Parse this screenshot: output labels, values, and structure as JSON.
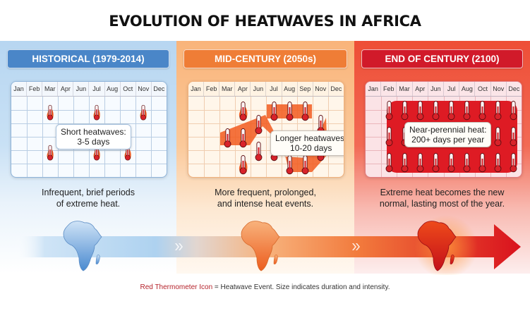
{
  "title": "EVOLUTION OF HEATWAVES IN AFRICA",
  "panels": [
    {
      "id": "historical",
      "label": "HISTORICAL (1979-2014)",
      "accent": "#4a86c8",
      "months": [
        "Jan",
        "Feb",
        "Mar",
        "Apr",
        "Jun",
        "Jul",
        "Aug",
        "Oct",
        "Nov",
        "Dec"
      ],
      "callout_line1": "Short heatwaves:",
      "callout_line2": "3-5 days",
      "description_line1": "Infrequent, brief periods",
      "description_line2": "of extreme heat.",
      "heatwave_events": [
        {
          "month": "Mar",
          "row": 1
        },
        {
          "month": "Jul",
          "row": 1
        },
        {
          "month": "Nov",
          "row": 1
        },
        {
          "month": "Mar",
          "row": 4
        },
        {
          "month": "Jul",
          "row": 4
        },
        {
          "month": "Oct",
          "row": 4
        }
      ]
    },
    {
      "id": "mid-century",
      "label": "MID-CENTURY (2050s)",
      "accent": "#ef7d36",
      "months": [
        "Jan",
        "Feb",
        "Mar",
        "Apr",
        "Jun",
        "Jul",
        "Aug",
        "Sep",
        "Nov",
        "Dec"
      ],
      "callout_line1": "Longer heatwaves:",
      "callout_line2": "10-20 days",
      "description_line1": "More frequent, prolonged,",
      "description_line2": "and intense heat events.",
      "heatwave_events": [
        {
          "month": "Apr",
          "row": 1
        },
        {
          "month": "Jul",
          "row": 1
        },
        {
          "month": "Aug",
          "row": 1
        },
        {
          "month": "Sep",
          "row": 1
        },
        {
          "month": "Jun",
          "row": 2
        },
        {
          "month": "Nov",
          "row": 2
        },
        {
          "month": "Mar",
          "row": 3
        },
        {
          "month": "Apr",
          "row": 3
        },
        {
          "month": "Jun",
          "row": 4
        },
        {
          "month": "Jul",
          "row": 4
        },
        {
          "month": "Nov",
          "row": 4
        },
        {
          "month": "Apr",
          "row": 5
        },
        {
          "month": "Aug",
          "row": 5
        },
        {
          "month": "Sep",
          "row": 5
        }
      ]
    },
    {
      "id": "end-of-century",
      "label": "END OF CENTURY (2100)",
      "accent": "#d11a2a",
      "months": [
        "Jan",
        "Feb",
        "Mar",
        "Apr",
        "Jun",
        "Jul",
        "Aug",
        "Oct",
        "Nov",
        "Dec"
      ],
      "callout_line1": "Near-perennial heat:",
      "callout_line2": "200+ days per year",
      "description_line1": "Extreme heat becomes the new",
      "description_line2": "normal, lasting most of the year.",
      "heatwave_columns": [
        "Feb",
        "Mar",
        "Apr",
        "Jun",
        "Jul",
        "Aug",
        "Oct",
        "Nov",
        "Dec"
      ]
    }
  ],
  "legend": {
    "key_label": "Red Thermometer Icon",
    "text": " = Heatwave Event. Size indicates duration and intensity."
  },
  "colors": {
    "thermometer": "#d8232a",
    "flame": "#f25a1e",
    "arrow_start": "#bcdcf4",
    "arrow_end": "#d9111d"
  }
}
